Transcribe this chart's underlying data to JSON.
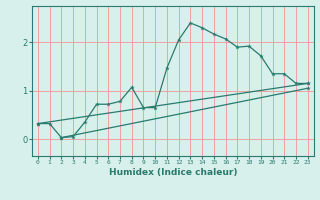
{
  "xlabel": "Humidex (Indice chaleur)",
  "ylabel": "",
  "bg_color": "#d8f0ec",
  "grid_color": "#f0a0a0",
  "line_color": "#2a7a6e",
  "xlim": [
    -0.5,
    23.5
  ],
  "ylim": [
    -0.35,
    2.75
  ],
  "yticks": [
    0,
    1,
    2
  ],
  "xticks": [
    0,
    1,
    2,
    3,
    4,
    5,
    6,
    7,
    8,
    9,
    10,
    11,
    12,
    13,
    14,
    15,
    16,
    17,
    18,
    19,
    20,
    21,
    22,
    23
  ],
  "line1_x": [
    0,
    1,
    2,
    3,
    4,
    5,
    6,
    7,
    8,
    9,
    10,
    11,
    12,
    13,
    14,
    15,
    16,
    17,
    18,
    19,
    20,
    21,
    22,
    23
  ],
  "line1_y": [
    0.32,
    0.32,
    0.03,
    0.05,
    0.35,
    0.72,
    0.72,
    0.78,
    1.07,
    0.65,
    0.65,
    1.47,
    2.05,
    2.4,
    2.3,
    2.17,
    2.07,
    1.9,
    1.92,
    1.72,
    1.35,
    1.35,
    1.15,
    1.15
  ],
  "line2_x": [
    0,
    23
  ],
  "line2_y": [
    0.32,
    1.15
  ],
  "line3_x": [
    2,
    23
  ],
  "line3_y": [
    0.03,
    1.05
  ]
}
